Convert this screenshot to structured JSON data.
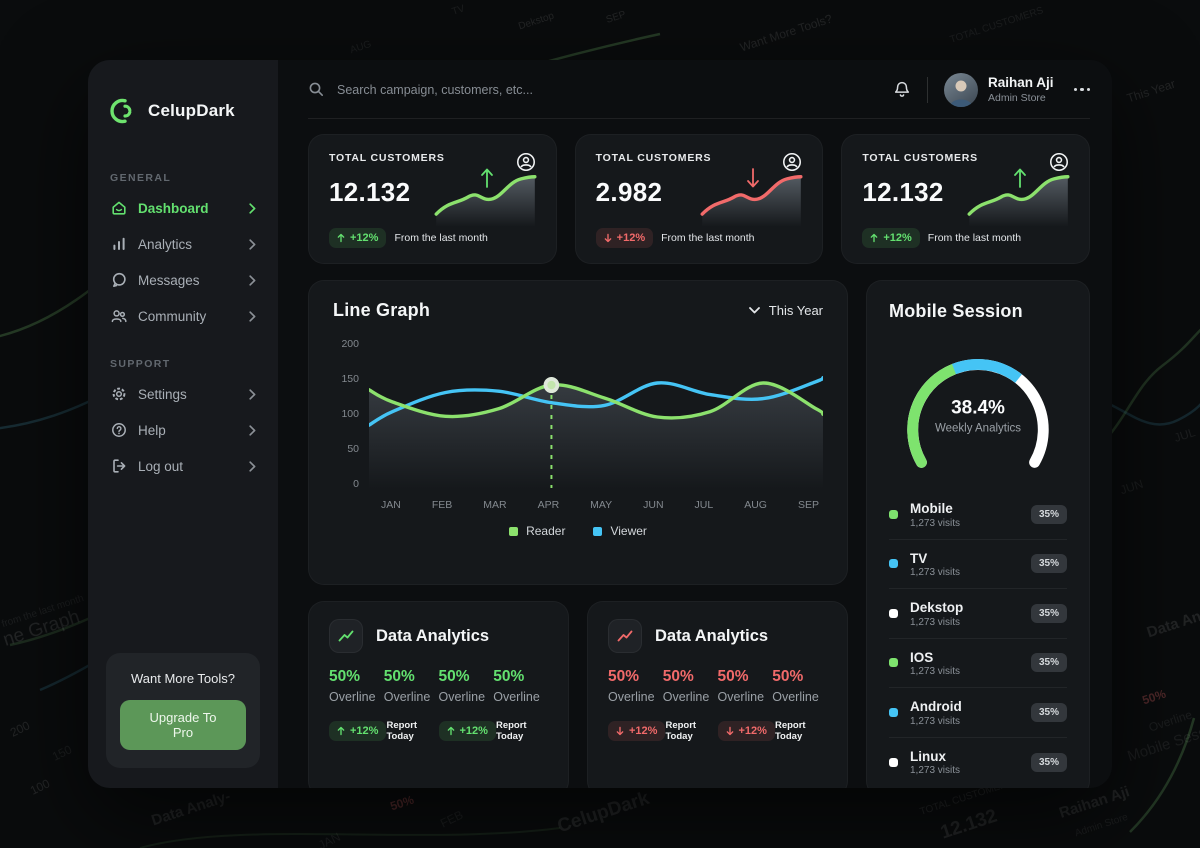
{
  "brand": {
    "name": "CelupDark"
  },
  "sidebar": {
    "sections": [
      {
        "title": "GENERAL",
        "items": [
          {
            "label": "Dashboard",
            "active": true
          },
          {
            "label": "Analytics",
            "active": false
          },
          {
            "label": "Messages",
            "active": false
          },
          {
            "label": "Community",
            "active": false
          }
        ]
      },
      {
        "title": "SUPPORT",
        "items": [
          {
            "label": "Settings",
            "active": false
          },
          {
            "label": "Help",
            "active": false
          },
          {
            "label": "Log out",
            "active": false
          }
        ]
      }
    ],
    "promo": {
      "text": "Want More Tools?",
      "button_label": "Upgrade To Pro"
    }
  },
  "topbar": {
    "search_placeholder": "Search campaign, customers, etc...",
    "user_name": "Raihan Aji",
    "user_role": "Admin Store"
  },
  "stat_cards": [
    {
      "label": "TOTAL CUSTOMERS",
      "value": "12.132",
      "direction": "up",
      "badge": "+12%",
      "note": "From the last month"
    },
    {
      "label": "TOTAL CUSTOMERS",
      "value": "2.982",
      "direction": "down",
      "badge": "+12%",
      "note": "From the last month"
    },
    {
      "label": "TOTAL CUSTOMERS",
      "value": "12.132",
      "direction": "up",
      "badge": "+12%",
      "note": "From the last month"
    }
  ],
  "chart_data": [
    {
      "type": "line",
      "title": "Line Graph",
      "range_label": "This Year",
      "x": [
        "JAN",
        "FEB",
        "MAR",
        "APR",
        "MAY",
        "JUN",
        "JUL",
        "AUG",
        "SEP"
      ],
      "yticks": [
        0,
        50,
        100,
        150,
        200
      ],
      "ylim": [
        0,
        200
      ],
      "grid": false,
      "legend_position": "bottom",
      "series": [
        {
          "name": "Reader",
          "color": "#8ce16d",
          "edge_start": 140,
          "edge_end": 104,
          "values": [
            122,
            101,
            112,
            147,
            128,
            100,
            108,
            150,
            112
          ]
        },
        {
          "name": "Viewer",
          "color": "#45c4f5",
          "edge_start": 88,
          "edge_end": 158,
          "values": [
            108,
            136,
            138,
            121,
            117,
            150,
            133,
            127,
            152
          ]
        }
      ],
      "highlight": {
        "series": "Reader",
        "month": "APR",
        "value": 147
      }
    },
    {
      "type": "gauge",
      "title": "Mobile Session",
      "value_label": "38.4%",
      "subtitle": "Weekly Analytics",
      "start_angle": 210,
      "end_angle": -30,
      "segments": [
        {
          "label": "green",
          "color": "#7ee36e",
          "fraction": 0.41
        },
        {
          "label": "blue",
          "color": "#45c4f5",
          "fraction": 0.25
        },
        {
          "label": "white",
          "color": "#ffffff",
          "fraction": 0.34
        }
      ]
    }
  ],
  "mobile_session": {
    "items": [
      {
        "name": "Mobile",
        "visits": "1,273 visits",
        "share": "35%",
        "color": "#7ee36e"
      },
      {
        "name": "TV",
        "visits": "1,273 visits",
        "share": "35%",
        "color": "#45c4f5"
      },
      {
        "name": "Dekstop",
        "visits": "1,273 visits",
        "share": "35%",
        "color": "#ffffff"
      },
      {
        "name": "IOS",
        "visits": "1,273 visits",
        "share": "35%",
        "color": "#7ee36e"
      },
      {
        "name": "Android",
        "visits": "1,273 visits",
        "share": "35%",
        "color": "#45c4f5"
      },
      {
        "name": "Linux",
        "visits": "1,273 visits",
        "share": "35%",
        "color": "#ffffff"
      }
    ]
  },
  "analytics_cards": [
    {
      "title": "Data Analytics",
      "tone": "up",
      "stats": [
        {
          "pct": "50%",
          "label": "Overline"
        },
        {
          "pct": "50%",
          "label": "Overline"
        },
        {
          "pct": "50%",
          "label": "Overline"
        },
        {
          "pct": "50%",
          "label": "Overline"
        }
      ],
      "footer": {
        "badge1": "+12%",
        "report1": "Report Today",
        "badge2": "+12%",
        "report2": "Report Today"
      }
    },
    {
      "title": "Data Analytics",
      "tone": "down",
      "stats": [
        {
          "pct": "50%",
          "label": "Overline"
        },
        {
          "pct": "50%",
          "label": "Overline"
        },
        {
          "pct": "50%",
          "label": "Overline"
        },
        {
          "pct": "50%",
          "label": "Overline"
        }
      ],
      "footer": {
        "badge1": "+12%",
        "report1": "Report Today",
        "badge2": "+12%",
        "report2": "Report Today"
      }
    }
  ],
  "colors": {
    "accent_green": "#63e06f",
    "accent_red": "#f16a6a",
    "chart_green": "#8ce16d",
    "chart_blue": "#45c4f5",
    "gauge_white": "#ffffff",
    "button_green": "#5c9758"
  },
  "backdrop_texts": [
    "Dekstop",
    "SEP",
    "AUG",
    "TV",
    "Want More Tools?",
    "TOTAL CUSTOMERS",
    "This Year",
    "JUN",
    "JUL",
    "Data An",
    "50%",
    "Overline",
    "Raihan Aji",
    "Admin Store",
    "Data Analy-",
    "50%",
    "CelupDark",
    "TOTAL CUSTOMERS",
    "12.132",
    "ne Graph",
    "200",
    "150",
    "100",
    "JAN",
    "FEB",
    "from the last month",
    "Mobile Sess"
  ]
}
